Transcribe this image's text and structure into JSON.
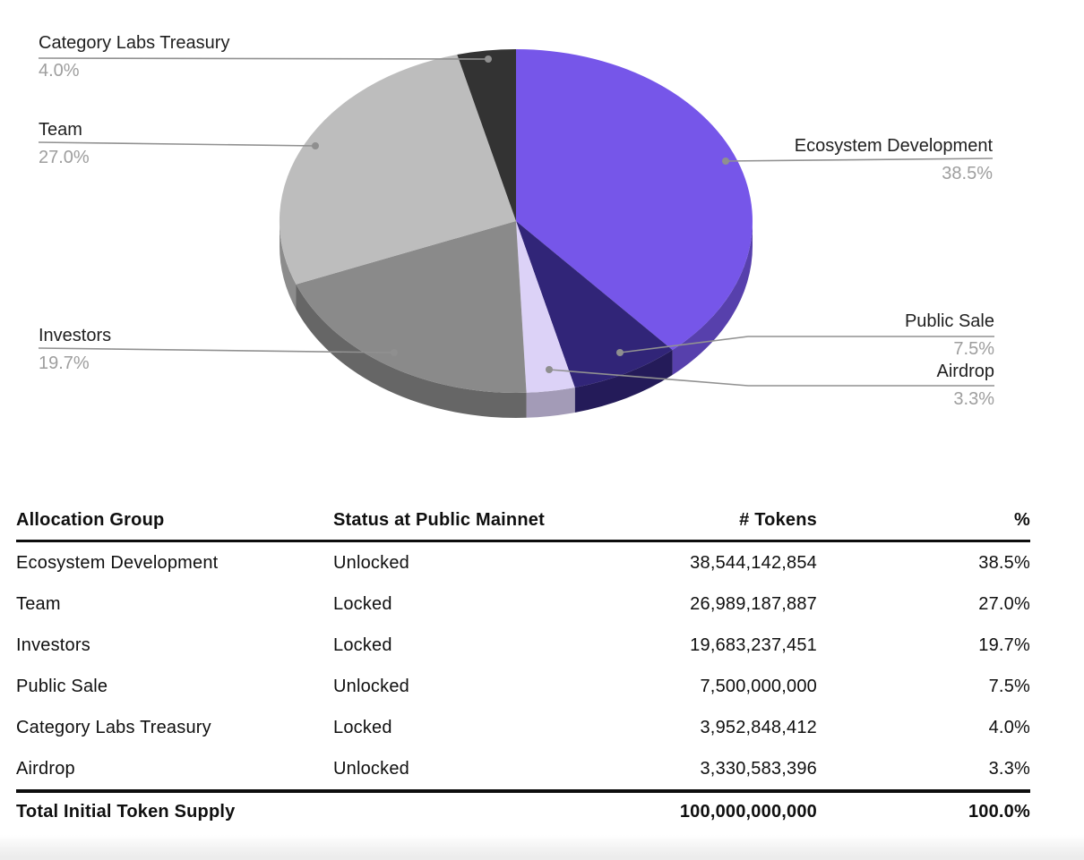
{
  "chart_data": {
    "type": "pie",
    "style": "3d",
    "title": "",
    "direction": "clockwise",
    "start_angle_deg": 0,
    "legend_position": "outside-callouts",
    "label_color": "#1f1f1f",
    "pct_color": "#9e9e9e",
    "slices": [
      {
        "label": "Ecosystem Development",
        "value": 38.5,
        "pct_label": "38.5%",
        "color": "#7656E9"
      },
      {
        "label": "Public Sale",
        "value": 7.5,
        "pct_label": "7.5%",
        "color": "#312578"
      },
      {
        "label": "Airdrop",
        "value": 3.3,
        "pct_label": "3.3%",
        "color": "#DCD2F7"
      },
      {
        "label": "Investors",
        "value": 19.7,
        "pct_label": "19.7%",
        "color": "#8A8A8A"
      },
      {
        "label": "Team",
        "value": 27.0,
        "pct_label": "27.0%",
        "color": "#BDBDBD"
      },
      {
        "label": "Category Labs Treasury",
        "value": 4.0,
        "pct_label": "4.0%",
        "color": "#333333"
      }
    ]
  },
  "table": {
    "headers": [
      "Allocation Group",
      "Status at Public Mainnet",
      "# Tokens",
      "%"
    ],
    "rows": [
      {
        "group": "Ecosystem Development",
        "status": "Unlocked",
        "tokens": "38,544,142,854",
        "pct": "38.5%"
      },
      {
        "group": "Team",
        "status": "Locked",
        "tokens": "26,989,187,887",
        "pct": "27.0%"
      },
      {
        "group": "Investors",
        "status": "Locked",
        "tokens": "19,683,237,451",
        "pct": "19.7%"
      },
      {
        "group": "Public Sale",
        "status": "Unlocked",
        "tokens": "7,500,000,000",
        "pct": "7.5%"
      },
      {
        "group": "Category Labs Treasury",
        "status": "Locked",
        "tokens": "3,952,848,412",
        "pct": "4.0%"
      },
      {
        "group": "Airdrop",
        "status": "Unlocked",
        "tokens": "3,330,583,396",
        "pct": "3.3%"
      }
    ],
    "total": {
      "label": "Total Initial Token Supply",
      "status": "",
      "tokens": "100,000,000,000",
      "pct": "100.0%"
    }
  }
}
